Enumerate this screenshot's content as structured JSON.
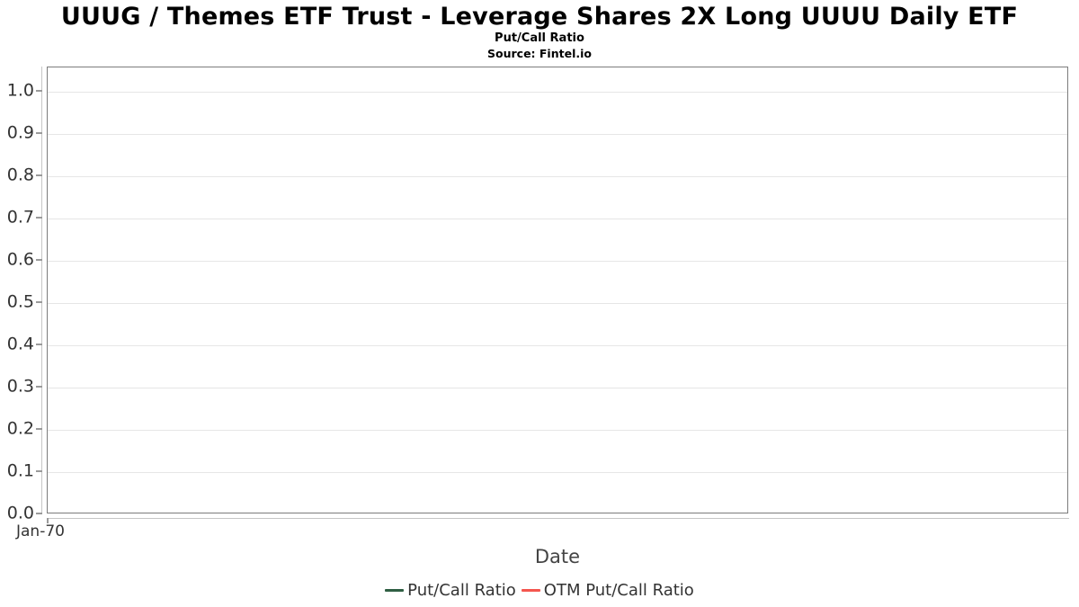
{
  "header": {
    "title": "UUUG / Themes ETF Trust - Leverage Shares 2X Long UUUU Daily ETF",
    "subtitle": "Put/Call Ratio",
    "source": "Source: Fintel.io"
  },
  "chart_data": {
    "type": "line",
    "title": "UUUG / Themes ETF Trust - Leverage Shares 2X Long UUUU Daily ETF",
    "subtitle": "Put/Call Ratio",
    "source": "Source: Fintel.io",
    "xlabel": "Date",
    "ylabel": "",
    "x_ticks": [
      "Jan-70"
    ],
    "y_ticks": [
      0.0,
      0.1,
      0.2,
      0.3,
      0.4,
      0.5,
      0.6,
      0.7,
      0.8,
      0.9,
      1.0
    ],
    "ylim": [
      0.0,
      1.057
    ],
    "grid": true,
    "legend_position": "bottom",
    "series": [
      {
        "name": "Put/Call Ratio",
        "color": "#2f5f43",
        "x": [],
        "values": []
      },
      {
        "name": "OTM Put/Call Ratio",
        "color": "#f4564e",
        "x": [],
        "values": []
      }
    ],
    "note": "plot area is empty - no data points rendered"
  },
  "colors": {
    "plot_border": "#7c7c7c",
    "gridline": "#e6e6e6",
    "axis_line": "#c6c6c6",
    "tick": "#9a9a9a",
    "tick_label": "#333333",
    "axis_title": "#444444",
    "legend_text": "#333333",
    "background": "#ffffff"
  }
}
